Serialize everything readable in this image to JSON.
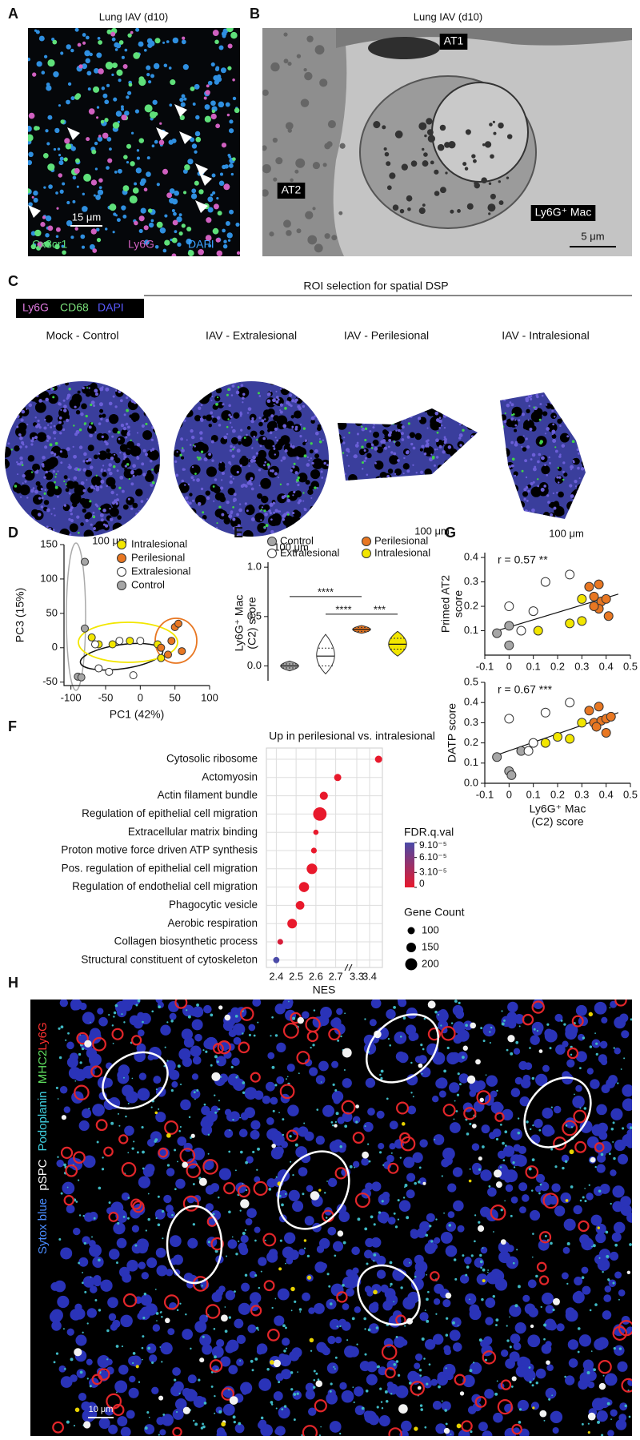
{
  "panels": {
    "A": {
      "label": "A",
      "title": "Lung IAV (d10)",
      "scale_bar": "15 μm",
      "channels": [
        "Cx3cr1",
        "Ly6G",
        "DAPI"
      ]
    },
    "B": {
      "label": "B",
      "title": "Lung IAV (d10)",
      "annotations": [
        "AT1",
        "AT2",
        "Ly6G⁺ Mac"
      ],
      "scale_bar": "5 μm"
    },
    "C": {
      "label": "C",
      "title": "ROI selection for spatial DSP",
      "channels": [
        "Ly6G",
        "CD68",
        "DAPI"
      ],
      "rois": [
        {
          "name": "Mock - Control",
          "scale_bar": "100 μm"
        },
        {
          "name": "IAV - Extralesional",
          "scale_bar": "100 μm"
        },
        {
          "name": "IAV - Perilesional",
          "scale_bar": "100 μm"
        },
        {
          "name": "IAV - Intralesional",
          "scale_bar": "100 μm"
        }
      ]
    },
    "H": {
      "label": "H",
      "channels": [
        "Sytox blue",
        "pSPC",
        "Podoplanin",
        "MHC2",
        "Ly6G"
      ],
      "scale_bar": "10 μm"
    }
  },
  "chart_data": [
    {
      "type": "scatter",
      "panel_label": "D",
      "xlabel": "PC1 (42%)",
      "ylabel": "PC3 (15%)",
      "xlim": [
        -110,
        100
      ],
      "ylim": [
        -55,
        150
      ],
      "xticks": [
        -100,
        -50,
        0,
        50,
        100
      ],
      "yticks": [
        -50,
        0,
        50,
        100,
        150
      ],
      "series": [
        {
          "name": "Intralesional",
          "color": "#f2e600",
          "x": [
            -70,
            -60,
            -40,
            -15,
            25,
            30
          ],
          "y": [
            15,
            5,
            5,
            10,
            5,
            -15
          ]
        },
        {
          "name": "Perilesional",
          "color": "#e87722",
          "x": [
            30,
            45,
            50,
            55,
            60,
            40
          ],
          "y": [
            0,
            10,
            30,
            35,
            -5,
            -10
          ]
        },
        {
          "name": "Extralesional",
          "color": "#ffffff",
          "x": [
            -60,
            -45,
            -30,
            -10,
            0,
            -65
          ],
          "y": [
            -30,
            -35,
            10,
            -40,
            10,
            5
          ]
        },
        {
          "name": "Control",
          "color": "#a6a6a6",
          "x": [
            -90,
            -85,
            -80,
            -80
          ],
          "y": [
            -42,
            -43,
            125,
            28
          ]
        }
      ]
    },
    {
      "type": "violin",
      "panel_label": "E",
      "ylabel": [
        "Ly6G⁺ Mac",
        "(C2) score"
      ],
      "ylim": [
        -0.15,
        1.05
      ],
      "yticks": [
        {
          "value": 0,
          "label": "0.0"
        },
        0.5,
        {
          "value": 1,
          "label": "1.0"
        }
      ],
      "series": [
        {
          "name": "Control",
          "color": "#a6a6a6",
          "min": -0.05,
          "q1": -0.02,
          "median": 0.0,
          "q3": 0.02,
          "max": 0.05
        },
        {
          "name": "Extralesional",
          "color": "#ffffff",
          "min": -0.08,
          "q1": 0.0,
          "median": 0.1,
          "q3": 0.18,
          "max": 0.32
        },
        {
          "name": "Perilesional",
          "color": "#e87722",
          "min": 0.33,
          "q1": 0.35,
          "median": 0.37,
          "q3": 0.39,
          "max": 0.41
        },
        {
          "name": "Intralesional",
          "color": "#f2e600",
          "min": 0.1,
          "q1": 0.17,
          "median": 0.22,
          "q3": 0.28,
          "max": 0.35
        }
      ],
      "significance": [
        {
          "groups": [
            0,
            2
          ],
          "label": "****"
        },
        {
          "groups": [
            1,
            2
          ],
          "label": "****"
        },
        {
          "groups": [
            2,
            3
          ],
          "label": "***"
        }
      ]
    },
    {
      "type": "dot",
      "panel_label": "F",
      "title": "Up in perilesional vs. intralesional",
      "xlabel": "NES",
      "categories": [
        "Cytosolic ribosome",
        "Actomyosin",
        "Actin filament bundle",
        "Regulation of epithelial cell migration",
        "Extracellular matrix binding",
        "Proton motive force driven ATP synthesis",
        "Pos. regulation of epithelial cell migration",
        "Regulation of endothelial cell migration",
        "Phagocytic vesicle",
        "Aerobic respiration",
        "Collagen biosynthetic process",
        "Structural constituent of cytoskeleton"
      ],
      "values": [
        3.47,
        2.71,
        2.64,
        2.62,
        2.6,
        2.59,
        2.58,
        2.54,
        2.52,
        2.48,
        2.42,
        2.4
      ],
      "sizes": [
        100,
        100,
        120,
        230,
        60,
        70,
        170,
        160,
        130,
        150,
        70,
        80
      ],
      "fdr": [
        0,
        0,
        0,
        0,
        0,
        0,
        0,
        0,
        0,
        0,
        1e-05,
        9e-05
      ],
      "xlim": [
        2.35,
        3.5
      ],
      "axis_break": [
        2.75,
        3.25
      ],
      "xticks": [
        2.4,
        2.5,
        2.6,
        2.7,
        3.3,
        3.4
      ],
      "grid": true,
      "color_title": "FDR.q.val",
      "color_low": "#e8192c",
      "color_high": "#4a4aa8",
      "color_ticks": [
        {
          "value": 9e-05,
          "label": "9.10⁻⁵"
        },
        {
          "value": 6e-05,
          "label": "6.10⁻⁵"
        },
        {
          "value": 3e-05,
          "label": "3.10⁻⁵"
        },
        0
      ],
      "size_title": "Gene Count",
      "size_ticks": [
        100,
        150,
        200
      ]
    },
    {
      "type": "scatter",
      "panel_label": "G",
      "annotation": "r = 0.57 **",
      "ylabel": [
        "Primed AT2",
        "score"
      ],
      "xlim": [
        -0.1,
        0.5
      ],
      "ylim": [
        0.0,
        0.42
      ],
      "xticks": [
        -0.1,
        0,
        0.1,
        0.2,
        0.3,
        0.4,
        0.5
      ],
      "yticks": [
        0.1,
        0.2,
        0.3,
        0.4
      ],
      "fit": {
        "x": [
          -0.05,
          0.45
        ],
        "y": [
          0.1,
          0.25
        ]
      },
      "series": [
        {
          "color": "#a6a6a6",
          "x": [
            -0.05,
            0.0,
            0.0
          ],
          "y": [
            0.09,
            0.12,
            0.04
          ]
        },
        {
          "color": "#ffffff",
          "x": [
            0.0,
            0.1,
            0.15,
            0.25,
            0.05
          ],
          "y": [
            0.2,
            0.18,
            0.3,
            0.33,
            0.1
          ]
        },
        {
          "color": "#f2e600",
          "x": [
            0.12,
            0.25,
            0.3,
            0.3
          ],
          "y": [
            0.1,
            0.13,
            0.14,
            0.23
          ]
        },
        {
          "color": "#e87722",
          "x": [
            0.33,
            0.37,
            0.35,
            0.38,
            0.4,
            0.37,
            0.41,
            0.35
          ],
          "y": [
            0.28,
            0.29,
            0.24,
            0.22,
            0.23,
            0.19,
            0.16,
            0.2
          ]
        }
      ]
    },
    {
      "type": "scatter",
      "annotation": "r = 0.67 ***",
      "ylabel": "DATP score",
      "xlabel": [
        "Ly6G⁺ Mac",
        "(C2) score"
      ],
      "xlim": [
        -0.1,
        0.5
      ],
      "ylim": [
        0.0,
        0.5
      ],
      "xticks": [
        -0.1,
        0,
        0.1,
        0.2,
        0.3,
        0.4,
        0.5
      ],
      "yticks": [
        {
          "value": 0,
          "label": "0.0"
        },
        0.1,
        0.2,
        0.3,
        0.4,
        0.5
      ],
      "fit": {
        "x": [
          -0.05,
          0.45
        ],
        "y": [
          0.14,
          0.35
        ]
      },
      "series": [
        {
          "color": "#a6a6a6",
          "x": [
            -0.05,
            0.0,
            0.01,
            0.05
          ],
          "y": [
            0.13,
            0.06,
            0.04,
            0.16
          ]
        },
        {
          "color": "#ffffff",
          "x": [
            0.0,
            0.1,
            0.15,
            0.25,
            0.08
          ],
          "y": [
            0.32,
            0.2,
            0.35,
            0.4,
            0.16
          ]
        },
        {
          "color": "#f2e600",
          "x": [
            0.15,
            0.2,
            0.25,
            0.3
          ],
          "y": [
            0.2,
            0.23,
            0.22,
            0.3
          ]
        },
        {
          "color": "#e87722",
          "x": [
            0.33,
            0.37,
            0.35,
            0.38,
            0.4,
            0.42,
            0.36,
            0.4
          ],
          "y": [
            0.36,
            0.38,
            0.3,
            0.31,
            0.32,
            0.33,
            0.28,
            0.25
          ]
        }
      ]
    }
  ]
}
